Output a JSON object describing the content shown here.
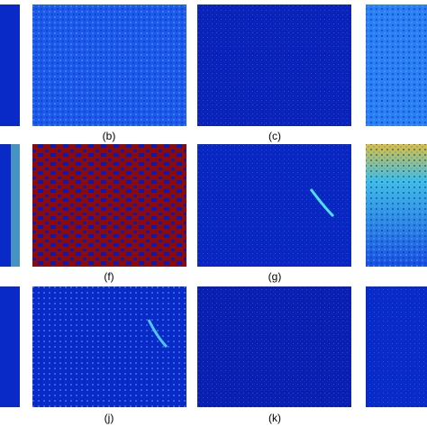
{
  "panels": [
    {
      "label": "(b)"
    },
    {
      "label": "(c)"
    },
    {
      "label": "(f)"
    },
    {
      "label": "(g)"
    },
    {
      "label": "(j)"
    },
    {
      "label": "(k)"
    }
  ]
}
